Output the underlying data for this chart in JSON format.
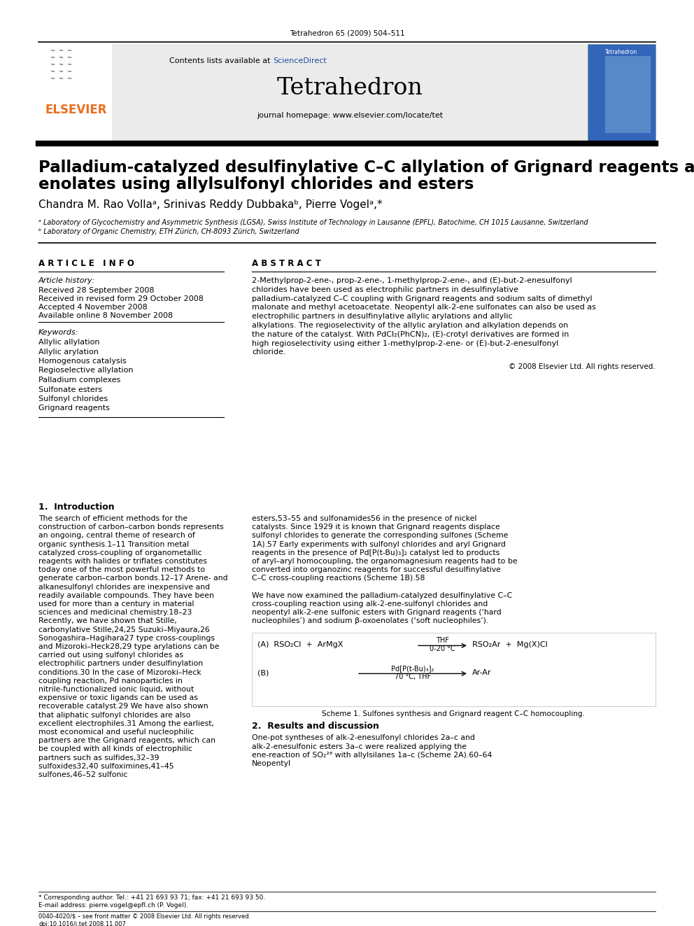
{
  "page_header": "Tetrahedron 65 (2009) 504–511",
  "journal_name": "Tetrahedron",
  "contents_line": "Contents lists available at ScienceDirect",
  "homepage_line": "journal homepage: www.elsevier.com/locate/tet",
  "title_line1": "Palladium-catalyzed desulfinylative C–C allylation of Grignard reagents and",
  "title_line2": "enolates using allylsulfonyl chlorides and esters",
  "authors": "Chandra M. Rao Vollaᵃ, Srinivas Reddy Dubbakaᵇ, Pierre Vogelᵃ,*",
  "affil_a": "ᵃ Laboratory of Glycochemistry and Asymmetric Synthesis (LGSA), Swiss Institute of Technology in Lausanne (EPFL), Batochime, CH 1015 Lausanne, Switzerland",
  "affil_b": "ᵇ Laboratory of Organic Chemistry, ETH Zürich, CH-8093 Zürich, Switzerland",
  "article_info_header": "A R T I C L E   I N F O",
  "article_history_header": "Article history:",
  "received": "Received 28 September 2008",
  "received_revised": "Received in revised form 29 October 2008",
  "accepted": "Accepted 4 November 2008",
  "available": "Available online 8 November 2008",
  "keywords_header": "Keywords:",
  "keywords": [
    "Allylic allylation",
    "Allylic arylation",
    "Homogenous catalysis",
    "Regioselective allylation",
    "Palladium complexes",
    "Sulfonate esters",
    "Sulfonyl chlorides",
    "Grignard reagents"
  ],
  "abstract_header": "A B S T R A C T",
  "abstract_text": "2-Methylprop-2-ene-, prop-2-ene-, 1-methylprop-2-ene-, and (E)-but-2-enesulfonyl chlorides have been used as electrophilic partners in desulfinylative palladium-catalyzed C–C coupling with Grignard reagents and sodium salts of dimethyl malonate and methyl acetoacetate. Neopentyl alk-2-ene sulfonates can also be used as electrophilic partners in desulfinylative allylic arylations and allylic alkylations. The regioselectivity of the allylic arylation and alkylation depends on the nature of the catalyst. With PdCl₂(PhCN)₂, (E)-crotyl derivatives are formed in high regioselectivity using either 1-methylprop-2-ene- or (E)-but-2-enesulfonyl chloride.",
  "copyright": "© 2008 Elsevier Ltd. All rights reserved.",
  "intro_header": "1.  Introduction",
  "intro_left": "    The search of efficient methods for the construction of carbon–carbon bonds represents an ongoing, central theme of research of organic synthesis.1–11 Transition metal catalyzed cross-coupling of organometallic reagents with halides or triflates constitutes today one of the most powerful methods to generate carbon–carbon bonds.12–17 Arene- and alkanesulfonyl chlorides are inexpensive and readily available compounds. They have been used for more than a century in material sciences and medicinal chemistry.18–23 Recently, we have shown that Stille, carbonylative Stille,24,25 Suzuki–Miyaura,26 Sonogashira–Hagihara27 type cross-couplings and Mizoroki–Heck28,29 type arylations can be carried out using sulfonyl chlorides as electrophilic partners under desulfinylation conditions.30 In the case of Mizoroki–Heck coupling reaction, Pd nanoparticles in nitrile-functionalized ionic liquid, without expensive or toxic ligands can be used as recoverable catalyst.29 We have also shown that aliphatic sulfonyl chlorides are also excellent electrophiles.31 Among the earliest, most economical and useful nucleophilic partners are the Grignard reagents, which can be coupled with all kinds of electrophilic partners such as sulfides,32–39 sulfoxides32,40 sulfoximines,41–45 sulfones,46–52 sulfonic",
  "intro_right": "esters,53–55 and sulfonamides56 in the presence of nickel catalysts. Since 1929 it is known that Grignard reagents displace sulfonyl chlorides to generate the corresponding sulfones (Scheme 1A).57 Early experiments with sulfonyl chlorides and aryl Grignard reagents in the presence of Pd[P(t-Bu)₃]₂ catalyst led to products of aryl–aryl homocoupling, the organomagnesium reagents had to be converted into organozinc reagents for successful desulfinylative C–C cross-coupling reactions (Scheme 1B).58",
  "scheme1_caption": "Scheme 1. Sulfones synthesis and Grignard reagent C–C homocoupling.",
  "we_have": "    We have now examined the palladium-catalyzed desulfinylative C–C cross-coupling reaction using alk-2-ene-sulfonyl chlorides and neopentyl alk-2-ene sulfonic esters with Grignard reagents (‘hard nucleophiles’) and sodium β-oxoenolates (‘soft nucleophiles’).",
  "results_header": "2.  Results and discussion",
  "results_text": "    One-pot syntheses of alk-2-enesulfonyl chlorides 2a–c and alk-2-enesulfonic esters 3a–c were realized applying the ene-reaction of SO₂²⁸ with allylsilanes 1a–c (Scheme 2A).60–64 Neopentyl",
  "footer_star": "* Corresponding author. Tel.: +41 21 693 93 71; fax: +41 21 693 93 50.",
  "footer_email": "E-mail address: pierre.vogel@epfl.ch (P. Vogel).",
  "footer_copy": "0040-4020/$ – see front matter © 2008 Elsevier Ltd. All rights reserved.",
  "footer_doi": "doi:10.1016/j.tet.2008.11.007",
  "blue_color": "#1a50a0",
  "orange_color": "#e86f1e",
  "bg_color": "#ffffff",
  "light_gray": "#e8e8e8"
}
